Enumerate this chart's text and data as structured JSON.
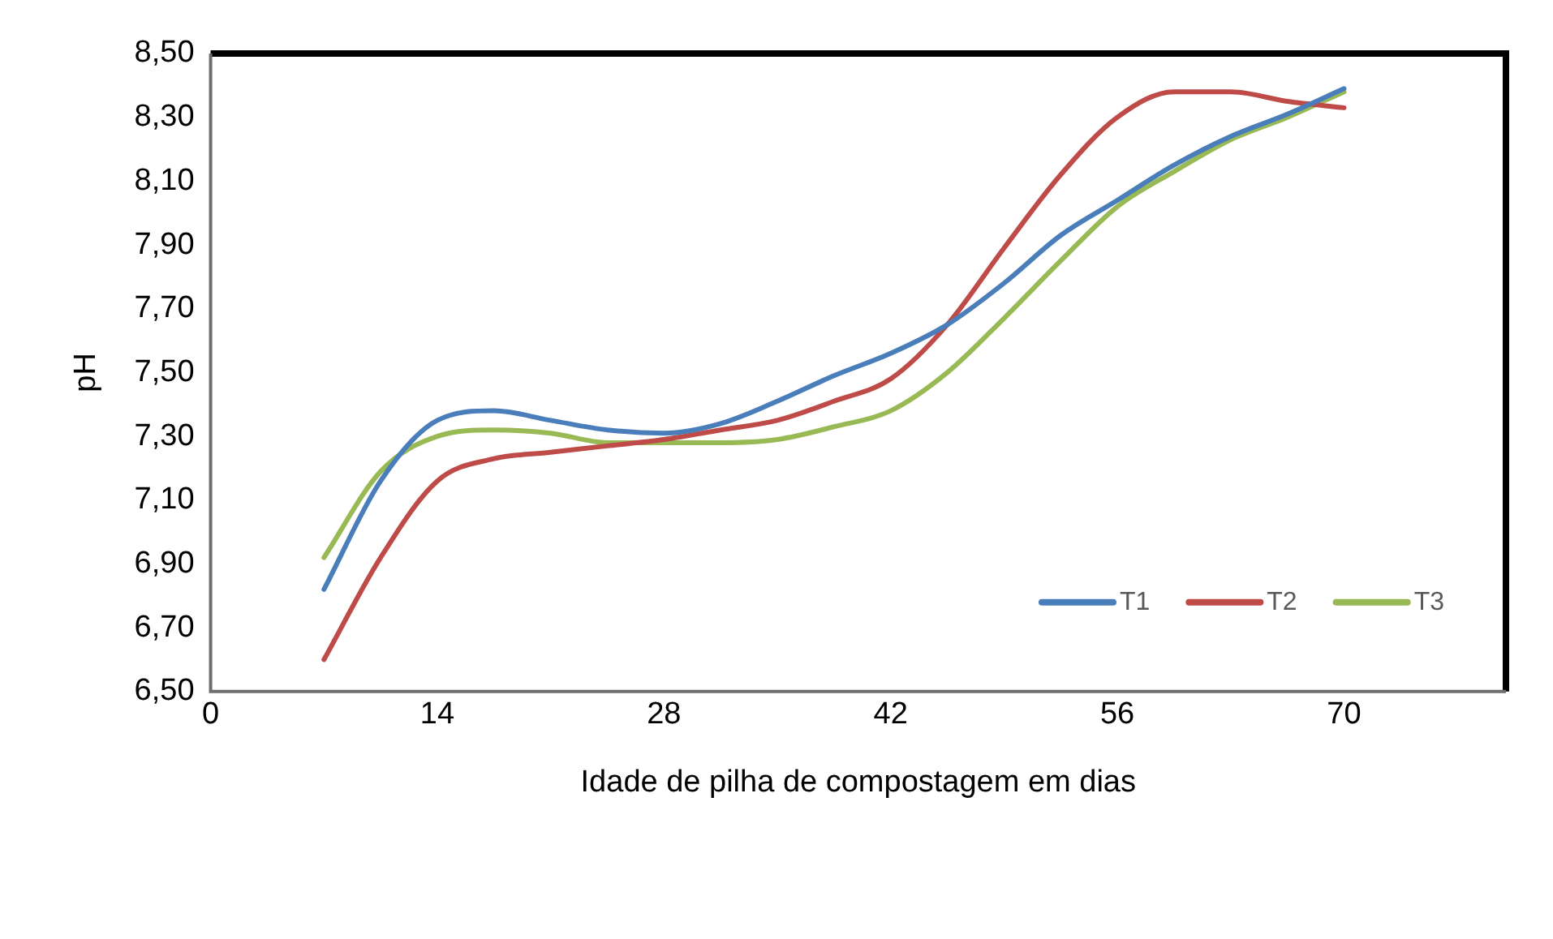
{
  "chart_data": {
    "type": "line",
    "xlabel": "Idade de pilha de compostagem em dias",
    "ylabel": "pH",
    "x": [
      7,
      10.5,
      14,
      17.5,
      21,
      24.5,
      28,
      31.5,
      35,
      38.5,
      42,
      45.5,
      49,
      52.5,
      56,
      59.5,
      63,
      66.5,
      70
    ],
    "series": [
      {
        "name": "T1",
        "color": "#4a7ebb",
        "values": [
          6.82,
          7.16,
          7.35,
          7.38,
          7.35,
          7.32,
          7.31,
          7.34,
          7.41,
          7.49,
          7.56,
          7.65,
          7.78,
          7.93,
          8.04,
          8.15,
          8.24,
          8.31,
          8.39
        ]
      },
      {
        "name": "T2",
        "color": "#be4b48",
        "values": [
          6.6,
          6.92,
          7.16,
          7.23,
          7.25,
          7.27,
          7.29,
          7.32,
          7.35,
          7.41,
          7.48,
          7.65,
          7.89,
          8.12,
          8.3,
          8.38,
          8.38,
          8.35,
          8.33
        ]
      },
      {
        "name": "T3",
        "color": "#98b954",
        "values": [
          6.92,
          7.19,
          7.3,
          7.32,
          7.31,
          7.28,
          7.28,
          7.28,
          7.29,
          7.33,
          7.38,
          7.5,
          7.67,
          7.85,
          8.02,
          8.13,
          8.23,
          8.3,
          8.38
        ]
      }
    ],
    "xlim": [
      0,
      80
    ],
    "xticks": [
      0,
      14,
      28,
      42,
      56,
      70
    ],
    "ylim": [
      6.5,
      8.5
    ],
    "yticks": [
      {
        "value": 6.5,
        "label": "6,50"
      },
      {
        "value": 6.7,
        "label": "6,70"
      },
      {
        "value": 6.9,
        "label": "6,90"
      },
      {
        "value": 7.1,
        "label": "7,10"
      },
      {
        "value": 7.3,
        "label": "7,30"
      },
      {
        "value": 7.5,
        "label": "7,50"
      },
      {
        "value": 7.7,
        "label": "7,70"
      },
      {
        "value": 7.9,
        "label": "7,90"
      },
      {
        "value": 8.1,
        "label": "8,10"
      },
      {
        "value": 8.3,
        "label": "8,30"
      },
      {
        "value": 8.5,
        "label": "8,50"
      }
    ],
    "grid": false,
    "legend": "bottom right",
    "marker": "none",
    "line_style": "solid"
  }
}
